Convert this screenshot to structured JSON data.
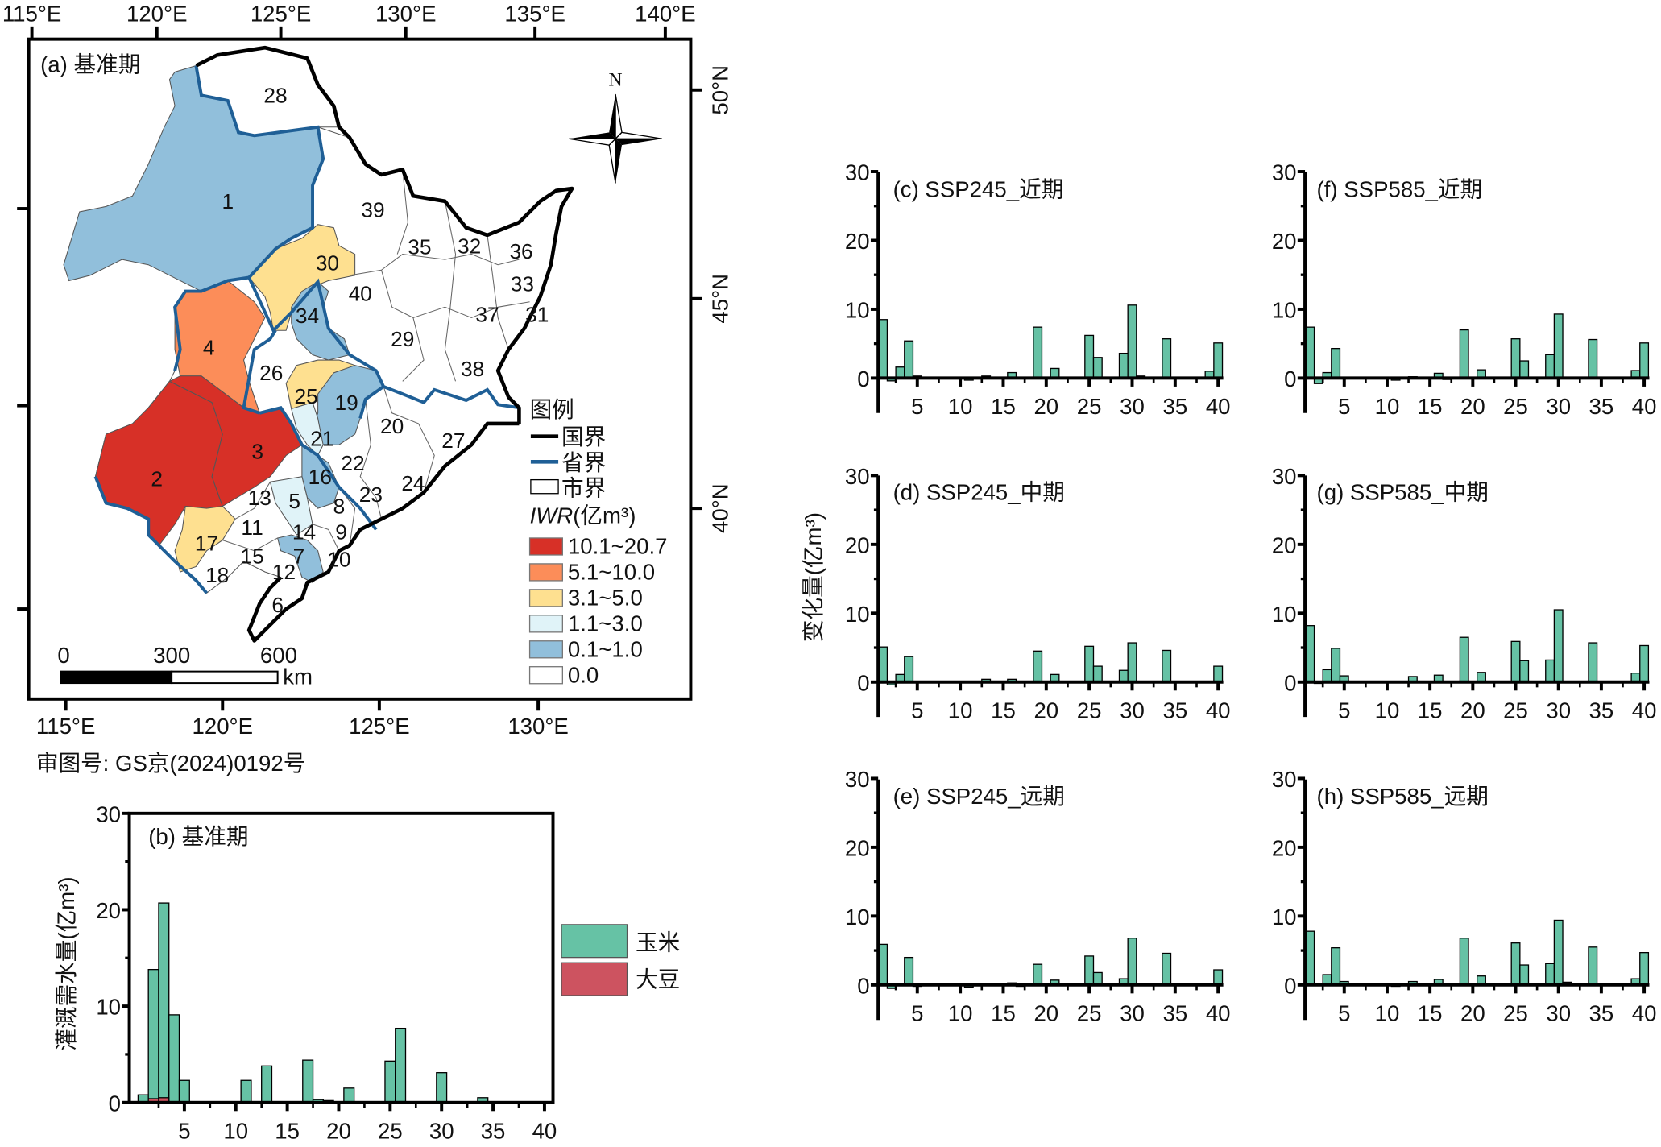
{
  "map": {
    "title": "(a) 基准期",
    "north_label": "N",
    "top_ticks": [
      "115°E",
      "120°E",
      "125°E",
      "130°E",
      "135°E",
      "140°E"
    ],
    "bottom_ticks": [
      "115°E",
      "120°E",
      "125°E",
      "130°E"
    ],
    "right_ticks": [
      "50°N",
      "45°N",
      "40°N"
    ],
    "scale": {
      "labels": [
        "0",
        "300",
        "600"
      ],
      "unit": "km"
    },
    "legend": {
      "title": "图例",
      "lines": [
        {
          "label": "国界",
          "color": "#000000"
        },
        {
          "label": "省界",
          "color": "#1f5f96"
        },
        {
          "label": "市界",
          "color": "#ffffff"
        }
      ],
      "iwr_title_italic": "IWR",
      "iwr_title_unit": "(亿m³)",
      "classes": [
        {
          "label": "10.1~20.7",
          "color": "#d73027"
        },
        {
          "label": "5.1~10.0",
          "color": "#fc8d59"
        },
        {
          "label": "3.1~5.0",
          "color": "#fee090"
        },
        {
          "label": "1.1~3.0",
          "color": "#e0f3f8"
        },
        {
          "label": "0.1~1.0",
          "color": "#91bfdb"
        },
        {
          "label": "0.0",
          "color": "#ffffff"
        }
      ]
    },
    "region_labels": [
      "1",
      "2",
      "3",
      "4",
      "5",
      "6",
      "7",
      "8",
      "9",
      "10",
      "11",
      "12",
      "13",
      "14",
      "15",
      "16",
      "17",
      "18",
      "19",
      "20",
      "21",
      "22",
      "23",
      "24",
      "25",
      "26",
      "27",
      "28",
      "29",
      "30",
      "31",
      "32",
      "33",
      "34",
      "35",
      "36",
      "37",
      "38",
      "39",
      "40"
    ],
    "caption": "审图号: GS京(2024)0192号"
  },
  "colors": {
    "maize": "#66c2a5",
    "soybean": "#cd5360"
  },
  "chart_data": [
    {
      "id": "b",
      "type": "bar",
      "title": "(b) 基准期",
      "ylabel": "灌溉需水量(亿m³)",
      "xlabel": "",
      "ylim": [
        0,
        30
      ],
      "xlim": [
        0,
        40
      ],
      "yticks": [
        "0",
        "10",
        "20",
        "30"
      ],
      "xticks": [
        "5",
        "10",
        "15",
        "20",
        "25",
        "30",
        "35",
        "40"
      ],
      "legend_position": "right",
      "series": [
        {
          "name": "玉米",
          "points": [
            [
              1,
              0.8
            ],
            [
              2,
              13.8
            ],
            [
              3,
              20.7
            ],
            [
              4,
              9.1
            ],
            [
              5,
              2.3
            ],
            [
              11,
              2.3
            ],
            [
              13,
              3.8
            ],
            [
              17,
              4.4
            ],
            [
              18,
              0.3
            ],
            [
              19,
              0.2
            ],
            [
              21,
              1.5
            ],
            [
              25,
              4.3
            ],
            [
              26,
              7.7
            ],
            [
              30,
              3.1
            ],
            [
              34,
              0.5
            ]
          ]
        },
        {
          "name": "大豆",
          "points": [
            [
              2,
              0.4
            ],
            [
              3,
              0.5
            ],
            [
              26,
              0.1
            ]
          ]
        }
      ]
    },
    {
      "id": "c",
      "type": "bar",
      "title": "(c) SSP245_近期",
      "ylim": [
        -5,
        30
      ],
      "xlim": [
        0,
        40
      ],
      "yticks": [
        "0",
        "10",
        "20",
        "30"
      ],
      "xticks": [
        "5",
        "10",
        "15",
        "20",
        "25",
        "30",
        "35",
        "40"
      ],
      "series": [
        {
          "points": [
            [
              1,
              8.5
            ],
            [
              2,
              -0.4
            ],
            [
              3,
              1.6
            ],
            [
              4,
              5.4
            ],
            [
              5,
              0.3
            ],
            [
              11,
              -0.3
            ],
            [
              13,
              0.3
            ],
            [
              16,
              0.8
            ],
            [
              19,
              7.4
            ],
            [
              21,
              1.4
            ],
            [
              25,
              6.2
            ],
            [
              26,
              3.0
            ],
            [
              29,
              3.6
            ],
            [
              30,
              10.6
            ],
            [
              31,
              0.3
            ],
            [
              34,
              5.7
            ],
            [
              39,
              1.0
            ],
            [
              40,
              5.1
            ]
          ]
        }
      ]
    },
    {
      "id": "d",
      "type": "bar",
      "title": "(d) SSP245_中期",
      "ylim": [
        -5,
        30
      ],
      "xlim": [
        0,
        40
      ],
      "yticks": [
        "0",
        "10",
        "20",
        "30"
      ],
      "xticks": [
        "5",
        "10",
        "15",
        "20",
        "25",
        "30",
        "35",
        "40"
      ],
      "series": [
        {
          "points": [
            [
              1,
              5.1
            ],
            [
              2,
              -0.4
            ],
            [
              3,
              1.1
            ],
            [
              4,
              3.7
            ],
            [
              13,
              0.4
            ],
            [
              16,
              0.4
            ],
            [
              17,
              0.1
            ],
            [
              19,
              4.5
            ],
            [
              21,
              1.1
            ],
            [
              25,
              5.2
            ],
            [
              26,
              2.3
            ],
            [
              29,
              1.7
            ],
            [
              30,
              5.7
            ],
            [
              34,
              4.6
            ],
            [
              40,
              2.3
            ]
          ]
        }
      ]
    },
    {
      "id": "e",
      "type": "bar",
      "title": "(e) SSP245_远期",
      "ylim": [
        -5,
        30
      ],
      "xlim": [
        0,
        40
      ],
      "yticks": [
        "0",
        "10",
        "20",
        "30"
      ],
      "xticks": [
        "5",
        "10",
        "15",
        "20",
        "25",
        "30",
        "35",
        "40"
      ],
      "series": [
        {
          "points": [
            [
              1,
              5.9
            ],
            [
              2,
              -0.5
            ],
            [
              3,
              0.2
            ],
            [
              4,
              4.0
            ],
            [
              5,
              -0.2
            ],
            [
              11,
              -0.3
            ],
            [
              16,
              0.3
            ],
            [
              17,
              -0.2
            ],
            [
              19,
              3.0
            ],
            [
              21,
              0.7
            ],
            [
              25,
              4.2
            ],
            [
              26,
              1.8
            ],
            [
              29,
              0.9
            ],
            [
              30,
              6.8
            ],
            [
              34,
              4.6
            ],
            [
              39,
              0.2
            ],
            [
              40,
              2.2
            ]
          ]
        }
      ]
    },
    {
      "id": "f",
      "type": "bar",
      "title": "(f) SSP585_近期",
      "ylim": [
        -5,
        30
      ],
      "xlim": [
        0,
        40
      ],
      "yticks": [
        "0",
        "10",
        "20",
        "30"
      ],
      "xticks": [
        "5",
        "10",
        "15",
        "20",
        "25",
        "30",
        "35",
        "40"
      ],
      "series": [
        {
          "points": [
            [
              1,
              7.4
            ],
            [
              2,
              -0.8
            ],
            [
              3,
              0.8
            ],
            [
              4,
              4.3
            ],
            [
              5,
              0.1
            ],
            [
              11,
              -0.3
            ],
            [
              13,
              0.2
            ],
            [
              16,
              0.7
            ],
            [
              17,
              -0.2
            ],
            [
              19,
              7.0
            ],
            [
              21,
              1.2
            ],
            [
              25,
              5.7
            ],
            [
              26,
              2.5
            ],
            [
              29,
              3.4
            ],
            [
              30,
              9.3
            ],
            [
              31,
              0.1
            ],
            [
              34,
              5.6
            ],
            [
              39,
              1.1
            ],
            [
              40,
              5.1
            ]
          ]
        }
      ]
    },
    {
      "id": "g",
      "type": "bar",
      "title": "(g) SSP585_中期",
      "ylim": [
        -5,
        30
      ],
      "xlim": [
        0,
        40
      ],
      "yticks": [
        "0",
        "10",
        "20",
        "30"
      ],
      "xticks": [
        "5",
        "10",
        "15",
        "20",
        "25",
        "30",
        "35",
        "40"
      ],
      "series": [
        {
          "points": [
            [
              1,
              8.2
            ],
            [
              2,
              -0.2
            ],
            [
              3,
              1.8
            ],
            [
              4,
              4.9
            ],
            [
              5,
              0.9
            ],
            [
              13,
              0.8
            ],
            [
              16,
              1.0
            ],
            [
              17,
              0.1
            ],
            [
              19,
              6.5
            ],
            [
              21,
              1.4
            ],
            [
              25,
              5.9
            ],
            [
              26,
              3.1
            ],
            [
              29,
              3.2
            ],
            [
              30,
              10.5
            ],
            [
              34,
              5.7
            ],
            [
              39,
              1.3
            ],
            [
              40,
              5.3
            ]
          ]
        }
      ]
    },
    {
      "id": "h",
      "type": "bar",
      "title": "(h) SSP585_远期",
      "ylim": [
        -5,
        30
      ],
      "xlim": [
        0,
        40
      ],
      "yticks": [
        "0",
        "10",
        "20",
        "30"
      ],
      "xticks": [
        "5",
        "10",
        "15",
        "20",
        "25",
        "30",
        "35",
        "40"
      ],
      "series": [
        {
          "points": [
            [
              1,
              7.8
            ],
            [
              3,
              1.5
            ],
            [
              4,
              5.4
            ],
            [
              5,
              0.5
            ],
            [
              11,
              -0.2
            ],
            [
              13,
              0.5
            ],
            [
              16,
              0.8
            ],
            [
              17,
              0.2
            ],
            [
              19,
              6.8
            ],
            [
              21,
              1.3
            ],
            [
              25,
              6.1
            ],
            [
              26,
              2.9
            ],
            [
              29,
              3.1
            ],
            [
              30,
              9.4
            ],
            [
              31,
              0.4
            ],
            [
              33,
              0.2
            ],
            [
              34,
              5.5
            ],
            [
              37,
              0.2
            ],
            [
              39,
              0.9
            ],
            [
              40,
              4.7
            ]
          ]
        }
      ]
    }
  ],
  "change_ylabel": "变化量(亿m³)"
}
